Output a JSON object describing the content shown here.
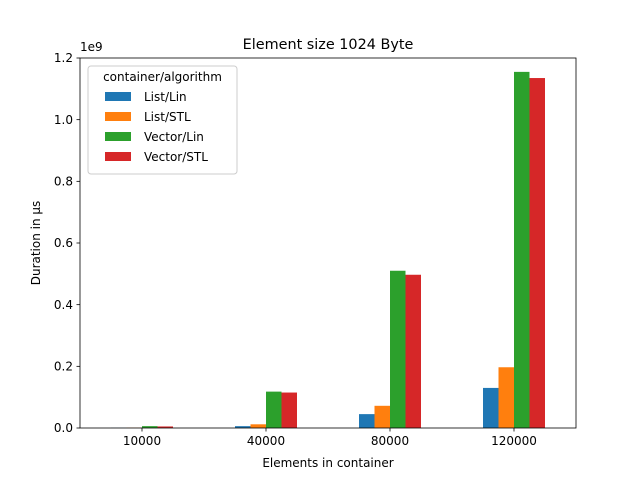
{
  "chart_data": {
    "type": "bar",
    "title": "Element size 1024 Byte",
    "xlabel": "Elements in container",
    "ylabel": "Duration in µs",
    "y_scale_label": "1e9",
    "categories": [
      "10000",
      "40000",
      "80000",
      "120000"
    ],
    "ylim": [
      0,
      1200000000.0
    ],
    "yticks": [
      0,
      200000000.0,
      400000000.0,
      600000000.0,
      800000000.0,
      1000000000.0,
      1200000000.0
    ],
    "ytick_labels": [
      "0.0",
      "0.2",
      "0.4",
      "0.6",
      "0.8",
      "1.0",
      "1.2"
    ],
    "legend_title": "container/algorithm",
    "legend_position": "top-left",
    "grid": false,
    "series": [
      {
        "name": "List/Lin",
        "color": "#1f77b4",
        "values": [
          500000,
          6000000,
          45000000,
          130000000
        ]
      },
      {
        "name": "List/STL",
        "color": "#ff7f0e",
        "values": [
          900000,
          12000000,
          72000000,
          197000000
        ]
      },
      {
        "name": "Vector/Lin",
        "color": "#2ca02c",
        "values": [
          6000000,
          118000000,
          510000000,
          1155000000
        ]
      },
      {
        "name": "Vector/STL",
        "color": "#d62728",
        "values": [
          5000000,
          115000000,
          497000000,
          1135000000
        ]
      }
    ]
  }
}
